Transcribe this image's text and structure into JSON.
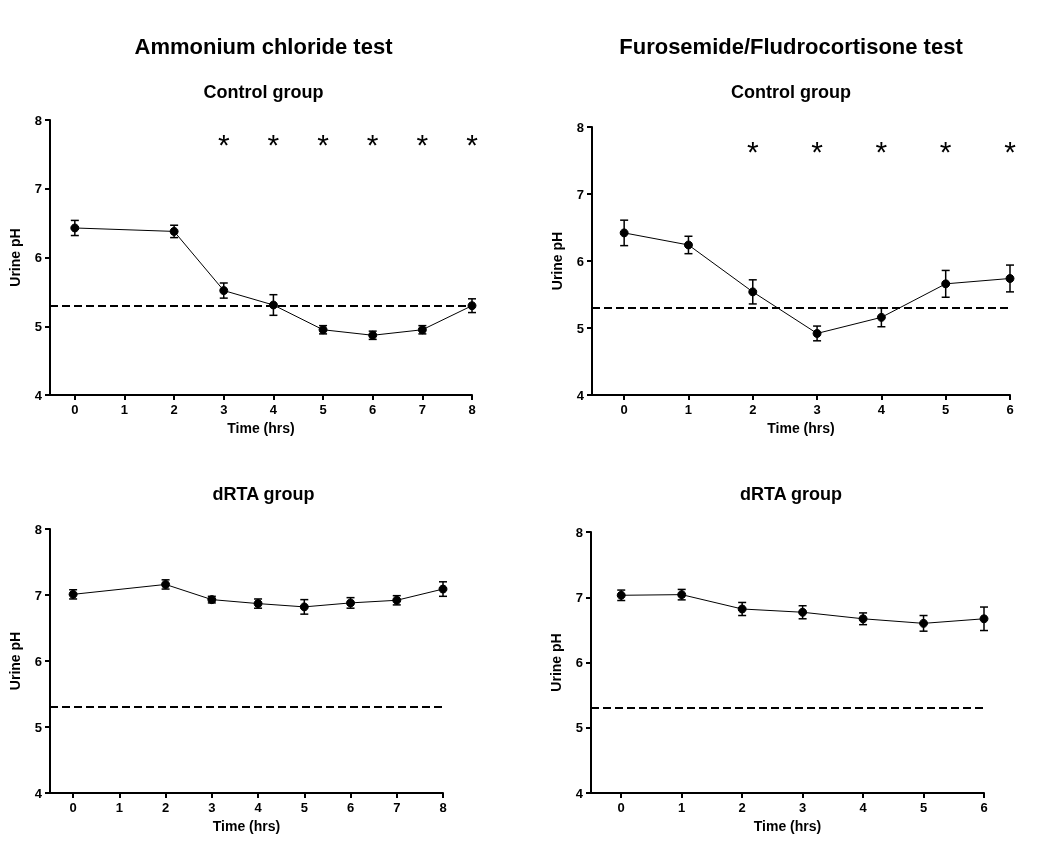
{
  "chart_data": [
    {
      "type": "line",
      "title": "Ammonium chloride test",
      "subtitle": "Control group",
      "xlabel": "Time (hrs)",
      "ylabel": "Urine pH",
      "x": [
        0,
        2,
        3,
        4,
        5,
        6,
        7,
        8
      ],
      "xlim": [
        -0.5,
        8
      ],
      "xticks": [
        0,
        1,
        2,
        3,
        4,
        5,
        6,
        7,
        8
      ],
      "ylim": [
        4,
        8
      ],
      "yticks": [
        4,
        5,
        6,
        7,
        8
      ],
      "grid": false,
      "marker": "circle",
      "line_style": "solid",
      "series": [
        {
          "color": "#000000",
          "values": [
            6.43,
            6.38,
            5.52,
            5.31,
            4.95,
            4.87,
            4.95,
            5.3
          ],
          "errors": [
            0.11,
            0.09,
            0.11,
            0.15,
            0.06,
            0.06,
            0.06,
            0.1
          ]
        }
      ],
      "ref_lines": [
        {
          "axis": "y",
          "value": 5.3,
          "line_style": "dashed",
          "color": "#000000"
        }
      ],
      "annotations": [
        "*",
        "*",
        "*",
        "*",
        "*",
        "*"
      ]
    },
    {
      "type": "line",
      "title": "Furosemide/Fludrocortisone test",
      "subtitle": "Control group",
      "xlabel": "Time (hrs)",
      "ylabel": "Urine pH",
      "x": [
        0,
        1,
        2,
        3,
        4,
        5,
        6
      ],
      "xlim": [
        -0.5,
        6
      ],
      "xticks": [
        0,
        1,
        2,
        3,
        4,
        5,
        6
      ],
      "ylim": [
        4,
        8
      ],
      "yticks": [
        4,
        5,
        6,
        7,
        8
      ],
      "grid": false,
      "marker": "circle",
      "line_style": "solid",
      "series": [
        {
          "color": "#000000",
          "values": [
            6.42,
            6.24,
            5.54,
            4.92,
            5.16,
            5.66,
            5.74
          ],
          "errors": [
            0.19,
            0.13,
            0.18,
            0.11,
            0.14,
            0.2,
            0.2
          ]
        }
      ],
      "ref_lines": [
        {
          "axis": "y",
          "value": 5.3,
          "line_style": "dashed",
          "color": "#000000"
        }
      ],
      "annotations": [
        "*",
        "*",
        "*",
        "*",
        "*"
      ]
    },
    {
      "type": "line",
      "title": "dRTA group",
      "xlabel": "Time (hrs)",
      "ylabel": "Urine pH",
      "x": [
        0,
        2,
        3,
        4,
        5,
        6,
        7,
        8
      ],
      "xlim": [
        -0.5,
        8
      ],
      "xticks": [
        0,
        1,
        2,
        3,
        4,
        5,
        6,
        7,
        8
      ],
      "ylim": [
        4,
        8
      ],
      "yticks": [
        4,
        5,
        6,
        7,
        8
      ],
      "grid": false,
      "marker": "circle",
      "line_style": "solid",
      "series": [
        {
          "color": "#000000",
          "values": [
            7.01,
            7.16,
            6.93,
            6.87,
            6.82,
            6.88,
            6.92,
            7.09
          ],
          "errors": [
            0.07,
            0.07,
            0.05,
            0.07,
            0.11,
            0.08,
            0.07,
            0.11
          ]
        }
      ],
      "ref_lines": [
        {
          "axis": "y",
          "value": 5.3,
          "line_style": "dashed",
          "color": "#000000"
        }
      ]
    },
    {
      "type": "line",
      "title": "dRTA group",
      "xlabel": "Time (hrs)",
      "ylabel": "Urine pH",
      "x": [
        0,
        1,
        2,
        3,
        4,
        5,
        6
      ],
      "xlim": [
        -0.5,
        6
      ],
      "xticks": [
        0,
        1,
        2,
        3,
        4,
        5,
        6
      ],
      "ylim": [
        4,
        8
      ],
      "yticks": [
        4,
        5,
        6,
        7,
        8
      ],
      "grid": false,
      "marker": "circle",
      "line_style": "solid",
      "series": [
        {
          "color": "#000000",
          "values": [
            7.03,
            7.04,
            6.82,
            6.77,
            6.67,
            6.6,
            6.67
          ],
          "errors": [
            0.08,
            0.08,
            0.1,
            0.1,
            0.09,
            0.12,
            0.18
          ]
        }
      ],
      "ref_lines": [
        {
          "axis": "y",
          "value": 5.3,
          "line_style": "dashed",
          "color": "#000000"
        }
      ]
    }
  ]
}
